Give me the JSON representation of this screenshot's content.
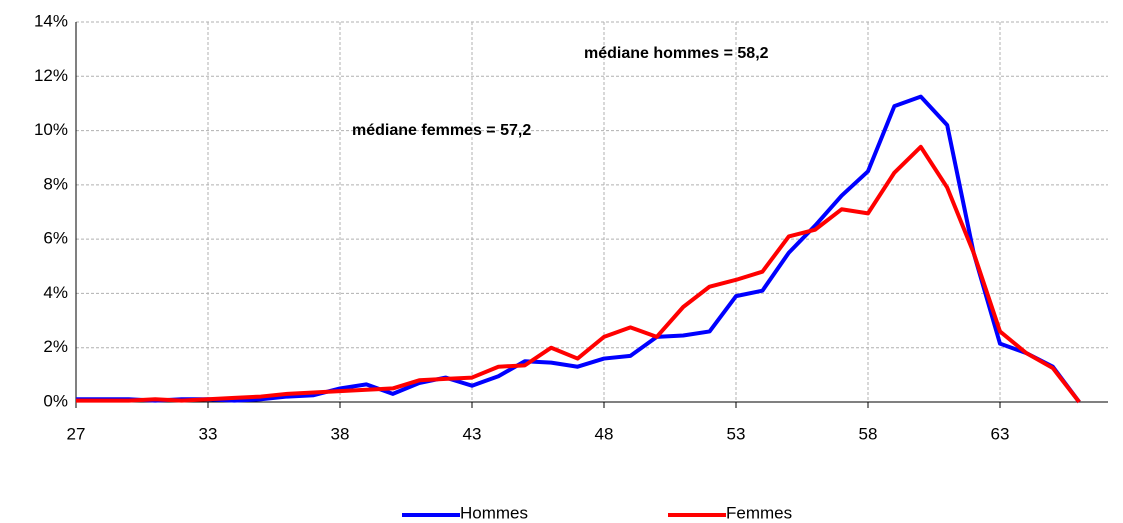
{
  "chart_data": {
    "type": "line",
    "categories": [
      "27",
      null,
      null,
      null,
      null,
      "33",
      null,
      null,
      null,
      null,
      "38",
      null,
      null,
      null,
      null,
      "43",
      null,
      null,
      null,
      null,
      "48",
      null,
      null,
      null,
      null,
      "53",
      null,
      null,
      null,
      null,
      "58",
      null,
      null,
      null,
      null,
      "63",
      null,
      null,
      null
    ],
    "series": [
      {
        "name": "Hommes",
        "color": "#0000ff",
        "values": [
          0.1,
          0.1,
          0.1,
          0.05,
          0.1,
          0.1,
          0.05,
          0.1,
          0.2,
          0.25,
          0.5,
          0.65,
          0.3,
          0.7,
          0.9,
          0.6,
          0.95,
          1.5,
          1.45,
          1.3,
          1.6,
          1.7,
          2.4,
          2.45,
          2.6,
          3.9,
          4.1,
          5.5,
          6.5,
          7.6,
          8.5,
          10.9,
          11.25,
          10.2,
          5.5,
          2.15,
          1.8,
          1.3,
          0
        ]
      },
      {
        "name": "Femmes",
        "color": "#ff0000",
        "values": [
          0.05,
          0.05,
          0.05,
          0.1,
          0.05,
          0.1,
          0.15,
          0.2,
          0.3,
          0.35,
          0.4,
          0.45,
          0.5,
          0.8,
          0.85,
          0.9,
          1.3,
          1.35,
          2.0,
          1.6,
          2.4,
          2.75,
          2.4,
          3.5,
          4.25,
          4.5,
          4.8,
          6.1,
          6.35,
          7.1,
          6.95,
          8.45,
          9.4,
          7.9,
          5.5,
          2.6,
          1.8,
          1.25,
          0
        ]
      }
    ],
    "ylim": [
      0,
      14
    ],
    "yticks": [
      {
        "value": 0,
        "label": "0%"
      },
      {
        "value": 2,
        "label": "2%"
      },
      {
        "value": 4,
        "label": "4%"
      },
      {
        "value": 6,
        "label": "6%"
      },
      {
        "value": 8,
        "label": "8%"
      },
      {
        "value": 10,
        "label": "10%"
      },
      {
        "value": 12,
        "label": "12%"
      },
      {
        "value": 14,
        "label": "14%"
      }
    ],
    "grid": true,
    "annotations": [
      {
        "text": "médiane hommes = 58,2",
        "color": "#0000ff"
      },
      {
        "text": "médiane femmes = 57,2",
        "color": "#ff0000"
      }
    ]
  }
}
